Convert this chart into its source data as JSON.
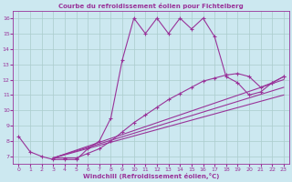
{
  "title": "Courbe du refroidissement éolien pour Fichtelberg",
  "xlabel": "Windchill (Refroidissement éolien,°C)",
  "background_color": "#cce8f0",
  "grid_color": "#aacccc",
  "line_color": "#993399",
  "xlim": [
    -0.5,
    23.5
  ],
  "ylim": [
    6.5,
    16.5
  ],
  "xticks": [
    0,
    1,
    2,
    3,
    4,
    5,
    6,
    7,
    8,
    9,
    10,
    11,
    12,
    13,
    14,
    15,
    16,
    17,
    18,
    19,
    20,
    21,
    22,
    23
  ],
  "yticks": [
    7,
    8,
    9,
    10,
    11,
    12,
    13,
    14,
    15,
    16
  ],
  "line1_x": [
    0,
    1,
    2,
    3,
    4,
    5,
    6,
    7,
    8,
    9,
    10,
    11,
    12,
    13,
    14,
    15,
    16,
    17,
    18,
    19,
    20,
    21,
    22,
    23
  ],
  "line1_y": [
    8.3,
    7.3,
    7.0,
    6.8,
    6.8,
    6.8,
    7.5,
    8.0,
    9.5,
    13.3,
    16.0,
    15.0,
    16.0,
    15.0,
    16.0,
    15.3,
    16.0,
    14.8,
    12.2,
    11.8,
    11.0,
    11.2,
    11.8,
    12.2
  ],
  "line2_x": [
    3,
    4,
    5,
    6,
    7,
    8,
    9,
    10,
    11,
    12,
    13,
    14,
    15,
    16,
    17,
    18,
    19,
    20,
    21,
    22,
    23
  ],
  "line2_y": [
    6.9,
    6.9,
    6.9,
    7.2,
    7.5,
    8.0,
    8.6,
    9.2,
    9.7,
    10.2,
    10.7,
    11.1,
    11.5,
    11.9,
    12.1,
    12.3,
    12.4,
    12.2,
    11.5,
    11.8,
    12.2
  ],
  "line3_x": [
    3,
    23
  ],
  "line3_y": [
    6.9,
    11.0
  ],
  "line4_x": [
    3,
    23
  ],
  "line4_y": [
    6.9,
    11.5
  ],
  "line5_x": [
    3,
    23
  ],
  "line5_y": [
    6.9,
    12.0
  ]
}
